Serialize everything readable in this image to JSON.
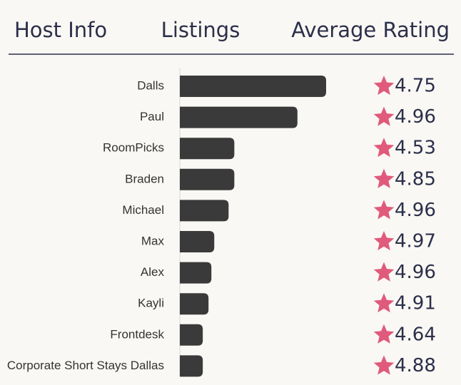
{
  "header": {
    "host": "Host Info",
    "listings": "Listings",
    "rating": "Average Rating"
  },
  "rows": [
    {
      "host": "Dalls",
      "listings": 51,
      "rating": 4.75
    },
    {
      "host": "Paul",
      "listings": 41,
      "rating": 4.96
    },
    {
      "host": "RoomPicks",
      "listings": 19,
      "rating": 4.53
    },
    {
      "host": "Braden",
      "listings": 19,
      "rating": 4.85
    },
    {
      "host": "Michael",
      "listings": 17,
      "rating": 4.96
    },
    {
      "host": "Max",
      "listings": 12,
      "rating": 4.97
    },
    {
      "host": "Alex",
      "listings": 11,
      "rating": 4.96
    },
    {
      "host": "Kayli",
      "listings": 10,
      "rating": 4.91
    },
    {
      "host": "Frontdesk",
      "listings": 8,
      "rating": 4.64
    },
    {
      "host": "Corporate Short Stays Dallas",
      "listings": 8,
      "rating": 4.88
    }
  ],
  "bar_color": "#3a3a3a",
  "star_color": "#e05a7c"
}
